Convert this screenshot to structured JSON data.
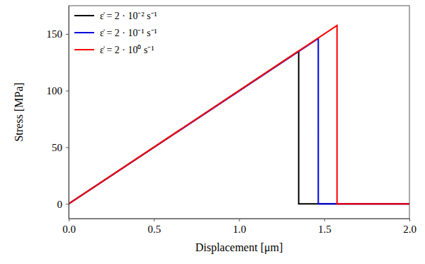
{
  "chart_data": {
    "type": "line",
    "x_label": "Displacement [μm]",
    "y_label": "Stress [MPa]",
    "xlim": [
      0,
      2
    ],
    "ylim": [
      -13,
      175
    ],
    "xticks": [
      {
        "value": 0,
        "label": "0.0"
      },
      0.5,
      {
        "value": 1,
        "label": "1.0"
      },
      1.5,
      {
        "value": 2,
        "label": "2.0"
      }
    ],
    "yticks": [
      0,
      50,
      100,
      150
    ],
    "legend": "upper left",
    "grid": false,
    "series": [
      {
        "name": "ε̇ = 2 · 10⁻² s⁻¹",
        "color": "#000000",
        "x": [
          0,
          1.35,
          1.35,
          2.0
        ],
        "values": [
          0,
          135,
          0,
          0
        ]
      },
      {
        "name": "ε̇ = 2 · 10⁻¹ s⁻¹",
        "color": "#0000dd",
        "x": [
          0,
          1.465,
          1.465,
          2.0
        ],
        "values": [
          0,
          146,
          0,
          0
        ]
      },
      {
        "name": "ε̇ = 2 · 10⁰ s⁻¹",
        "color": "#ff0000",
        "x": [
          0,
          1.575,
          1.575,
          2.0
        ],
        "values": [
          0,
          157.5,
          0,
          0
        ]
      }
    ]
  }
}
